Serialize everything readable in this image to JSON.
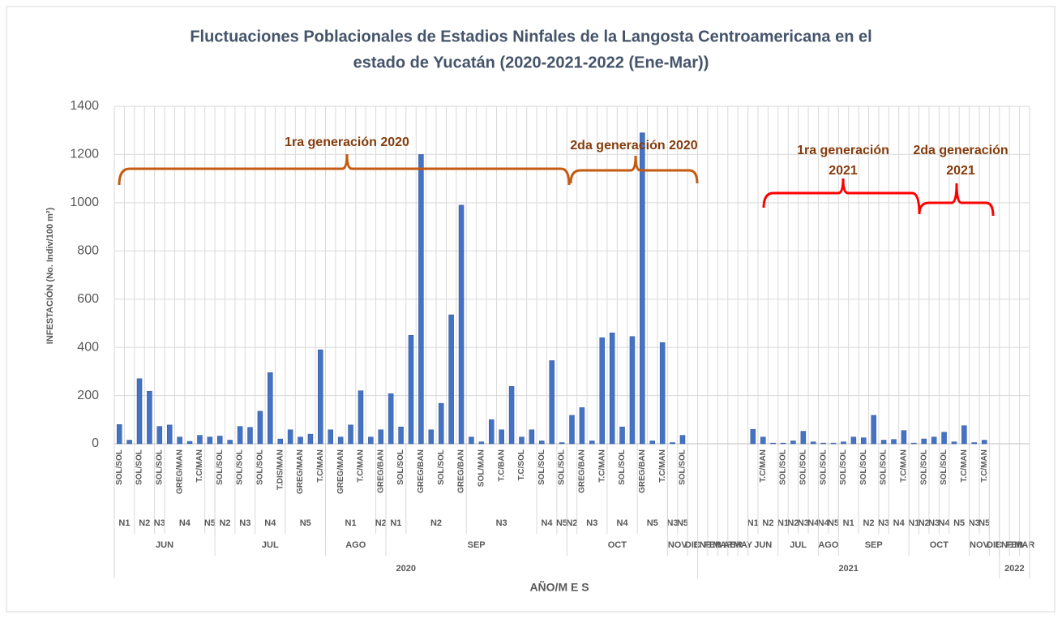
{
  "chart_data": {
    "type": "bar",
    "title": [
      "Fluctuaciones  Poblacionales  de Estadios Ninfales de la Langosta Centroamericana en el",
      "estado de Yucatán (2020-2021-2022 (Ene-Mar))"
    ],
    "y_label": "INFESTACIÓN (No. Indiv/100 m²)",
    "x_label": "AÑO/M E S",
    "color": "#4472c4",
    "grid": true,
    "ylim": [
      0,
      1400
    ],
    "yticks": [
      0,
      200,
      400,
      600,
      800,
      1000,
      1200,
      1400
    ],
    "categories": [
      "SOL/SOL",
      null,
      "SOL/SOL",
      null,
      "SOL/SOL",
      null,
      "GREG/MAN",
      null,
      "T.C/MAN",
      null,
      "SOL/SOL",
      null,
      "SOL/SOL",
      null,
      "SOL/SOL",
      null,
      "T.DIS/MAN",
      null,
      "GREG/MAN",
      null,
      "T.C/MAN",
      null,
      "GREG/MAN",
      null,
      "T.C/MAN",
      null,
      "GREG/BAN",
      null,
      "SOL/SOL",
      null,
      "GREG/BAN",
      null,
      "SOL/SOL",
      null,
      "GREG/BAN",
      null,
      "SOL/MAN",
      null,
      "T.C/BAN",
      null,
      "T.C/SOL",
      null,
      "SOL/SOL",
      null,
      "SOL/SOL",
      null,
      "GREG/BAN",
      null,
      "T.C/MAN",
      null,
      "SOL/SOL",
      null,
      "GREG/BAN",
      null,
      "T.C/MAN",
      null,
      "SOL/SOL",
      null,
      null,
      null,
      null,
      null,
      null,
      null,
      "T.C/MAN",
      null,
      "SOL/SOL",
      null,
      "SOL/SOL",
      null,
      "SOL/SOL",
      null,
      "SOL/SOL",
      null,
      "SOL/SOL",
      null,
      "SOL/SOL",
      null,
      "T.C/MAN",
      null,
      "SOL/SOL",
      null,
      "SOL/SOL",
      null,
      "T.C/MAN",
      null,
      "T.C/MAN",
      null,
      null,
      null,
      null
    ],
    "values": [
      80,
      15,
      270,
      218,
      72,
      78,
      28,
      10,
      35,
      28,
      32,
      15,
      72,
      68,
      135,
      295,
      20,
      58,
      28,
      40,
      390,
      58,
      28,
      78,
      220,
      28,
      58,
      208,
      70,
      450,
      1200,
      58,
      168,
      535,
      990,
      28,
      8,
      100,
      58,
      238,
      28,
      58,
      12,
      345,
      5,
      118,
      150,
      12,
      440,
      460,
      70,
      445,
      1290,
      12,
      420,
      5,
      35,
      null,
      null,
      null,
      null,
      null,
      null,
      60,
      28,
      3,
      3,
      12,
      52,
      8,
      3,
      3,
      8,
      28,
      25,
      118,
      15,
      18,
      55,
      3,
      20,
      28,
      48,
      8,
      75,
      5,
      15,
      null,
      null,
      null,
      null
    ],
    "x_levels": [
      {
        "groups": [
          {
            "label": "N1",
            "span": 2
          },
          {
            "label": "N2",
            "span": 2
          },
          {
            "label": "N3",
            "span": 1
          },
          {
            "label": "N4",
            "span": 4
          },
          {
            "label": "N5",
            "span": 1
          },
          {
            "label": "N2",
            "span": 2
          },
          {
            "label": "N3",
            "span": 2
          },
          {
            "label": "N4",
            "span": 3
          },
          {
            "label": "N5",
            "span": 4
          },
          {
            "label": "N1",
            "span": 5
          },
          {
            "label": "N2",
            "span": 1
          },
          {
            "label": "N1",
            "span": 2
          },
          {
            "label": "N2",
            "span": 6
          },
          {
            "label": "N3",
            "span": 7
          },
          {
            "label": "N4",
            "span": 2
          },
          {
            "label": "N5",
            "span": 1
          },
          {
            "label": "N2",
            "span": 1
          },
          {
            "label": "N3",
            "span": 3
          },
          {
            "label": "N4",
            "span": 3
          },
          {
            "label": "N5",
            "span": 3
          },
          {
            "label": "N3",
            "span": 1
          },
          {
            "label": "N5",
            "span": 1
          },
          {
            "label": null,
            "span": 6
          },
          {
            "label": "N1",
            "span": 1
          },
          {
            "label": "N2",
            "span": 2
          },
          {
            "label": "N1",
            "span": 1
          },
          {
            "label": "N2",
            "span": 1
          },
          {
            "label": "N3",
            "span": 1
          },
          {
            "label": "N4",
            "span": 1
          },
          {
            "label": "N4",
            "span": 1
          },
          {
            "label": "N5",
            "span": 1
          },
          {
            "label": "N1",
            "span": 2
          },
          {
            "label": "N2",
            "span": 2
          },
          {
            "label": "N3",
            "span": 1
          },
          {
            "label": "N4",
            "span": 2
          },
          {
            "label": "N1",
            "span": 1
          },
          {
            "label": "N2",
            "span": 1
          },
          {
            "label": "N3",
            "span": 1
          },
          {
            "label": "N4",
            "span": 1
          },
          {
            "label": "N5",
            "span": 2
          },
          {
            "label": "N3",
            "span": 1
          },
          {
            "label": "N5",
            "span": 1
          },
          {
            "label": null,
            "span": 4
          }
        ]
      },
      {
        "groups": [
          {
            "label": "JUN",
            "span": 10
          },
          {
            "label": "JUL",
            "span": 11
          },
          {
            "label": "AGO",
            "span": 6
          },
          {
            "label": "SEP",
            "span": 18
          },
          {
            "label": "OCT",
            "span": 10
          },
          {
            "label": "NOV",
            "span": 2
          },
          {
            "label": "DIC",
            "span": 1
          },
          {
            "label": "ENE",
            "span": 1
          },
          {
            "label": "FEB",
            "span": 1
          },
          {
            "label": "MAR",
            "span": 1
          },
          {
            "label": "ABR",
            "span": 1
          },
          {
            "label": "MAY",
            "span": 1
          },
          {
            "label": "JUN",
            "span": 3
          },
          {
            "label": "JUL",
            "span": 4
          },
          {
            "label": "AGO",
            "span": 2
          },
          {
            "label": "SEP",
            "span": 7
          },
          {
            "label": "OCT",
            "span": 6
          },
          {
            "label": "NOV",
            "span": 2
          },
          {
            "label": "DIC",
            "span": 1
          },
          {
            "label": "ENE",
            "span": 1
          },
          {
            "label": "FEB",
            "span": 1
          },
          {
            "label": "MAR",
            "span": 1
          }
        ]
      },
      {
        "groups": [
          {
            "label": "2020",
            "span": 58
          },
          {
            "label": "2021",
            "span": 30
          },
          {
            "label": "2022",
            "span": 3
          }
        ]
      }
    ],
    "annotations": [
      {
        "lines": [
          "1ra generación 2020"
        ]
      },
      {
        "lines": [
          "2da generación 2020"
        ]
      },
      {
        "lines": [
          "1ra generación",
          "2021"
        ]
      },
      {
        "lines": [
          "2da generación",
          "2021"
        ]
      }
    ]
  }
}
